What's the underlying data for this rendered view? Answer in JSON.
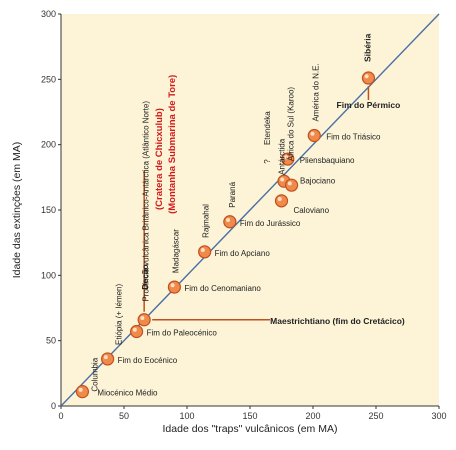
{
  "chart_data": {
    "type": "scatter",
    "xlabel": "Idade dos \"traps\" vulcânicos (em MA)",
    "ylabel": "Idade das extinções (em MA)",
    "xlim": [
      0,
      300
    ],
    "ylim": [
      0,
      300
    ],
    "xticks": [
      "0",
      "50",
      "100",
      "150",
      "200",
      "250",
      "300"
    ],
    "yticks": [
      "0",
      "50",
      "100",
      "150",
      "200",
      "250",
      "300"
    ],
    "grid": false,
    "reference_line": "y = x",
    "colors": {
      "background": "#fdf4d8",
      "line": "#4a6fa5",
      "point": "#f08a4b",
      "point_edge": "#c0501e",
      "highlight": "#d11a1a",
      "leader": "#c0501e"
    },
    "points": [
      {
        "x": 17,
        "y": 11,
        "trap": "Columbia",
        "extinction": "Miocénico Médio"
      },
      {
        "x": 37,
        "y": 36,
        "trap": "Etiópia (+ Iémen)",
        "extinction": "Fim do Eocénico"
      },
      {
        "x": 60,
        "y": 57,
        "trap": "Província vulcânica Britânico-Antárctica (Atlântico Norte)",
        "extinction": "Fim do Paleocénico"
      },
      {
        "x": 66,
        "y": 66,
        "trap": "Decão",
        "extinction": "Maestrichtiano (fim do Cretácico)"
      },
      {
        "x": 90,
        "y": 91,
        "trap": "Madagáscar",
        "extinction": "Fim do Cenomaniano"
      },
      {
        "x": 114,
        "y": 118,
        "trap": "Rajmahal",
        "extinction": "Fim do Apciano"
      },
      {
        "x": 134,
        "y": 141,
        "trap": "Paraná",
        "extinction": "Fim do Jurássico"
      },
      {
        "x": 175,
        "y": 157,
        "trap": "Antárctida",
        "extinction": "Caloviano"
      },
      {
        "x": 177,
        "y": 172,
        "trap": "?",
        "extinction": "Bajociano"
      },
      {
        "x": 183,
        "y": 169,
        "trap": "África do Sul (Karoo)",
        "extinction": ""
      },
      {
        "x": 180,
        "y": 189,
        "trap": "Etendeka",
        "extinction": "Pliensbaquiano"
      },
      {
        "x": 201,
        "y": 207,
        "trap": "América do N.E.",
        "extinction": "Fim do Triásico"
      },
      {
        "x": 244,
        "y": 251,
        "trap": "Sibéria",
        "extinction": "Fim do Pérmico"
      }
    ],
    "annotations": [
      "Cratera de Chicxulub",
      "Montanha Submarina de Tore"
    ]
  }
}
